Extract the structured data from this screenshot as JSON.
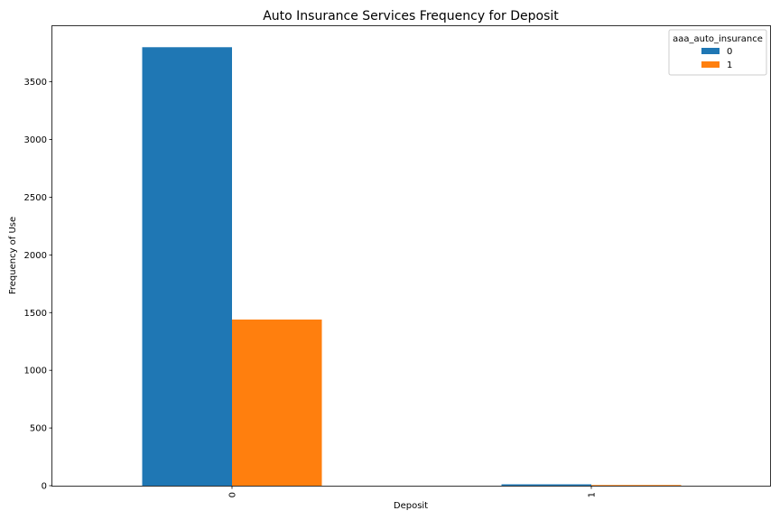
{
  "chart_data": {
    "type": "bar",
    "title": "Auto Insurance Services Frequency for Deposit",
    "xlabel": "Deposit",
    "ylabel": "Frequency of Use",
    "categories": [
      "0",
      "1"
    ],
    "ylim": [
      0,
      3990
    ],
    "yticks": [
      0,
      500,
      1000,
      1500,
      2000,
      2500,
      3000,
      3500
    ],
    "grid": false,
    "legend": {
      "title": "aaa_auto_insurance",
      "placement": "top-right"
    },
    "series": [
      {
        "name": "0",
        "color": "#1f77b4",
        "values": [
          3800,
          12
        ]
      },
      {
        "name": "1",
        "color": "#ff7f0e",
        "values": [
          1440,
          6
        ]
      }
    ]
  }
}
